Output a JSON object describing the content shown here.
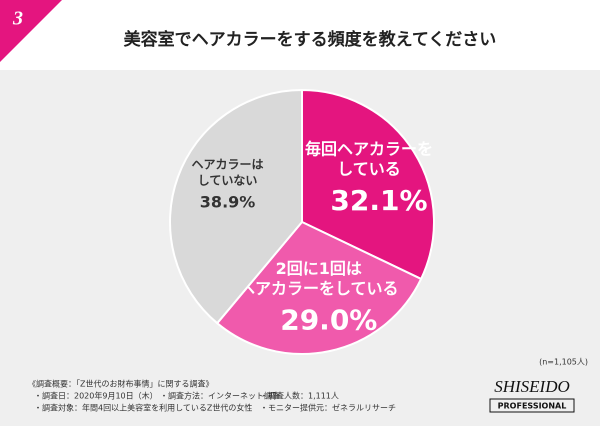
{
  "badge": "3",
  "chart_data": {
    "type": "pie",
    "title": "美容室でヘアカラーをする頻度を教えてください",
    "categories": [
      [
        "毎回ヘアカラーを",
        "している"
      ],
      [
        "2回に1回は",
        "ヘアカラーをしている"
      ],
      [
        "ヘアカラーは",
        "していない"
      ]
    ],
    "values": [
      32.1,
      29.0,
      38.9
    ],
    "value_labels": [
      "32.1%",
      "29.0%",
      "38.9%"
    ],
    "colors": [
      "#e4157f",
      "#f05aac",
      "#d9d9d9"
    ],
    "note": "(n=1,105人)"
  },
  "footer": {
    "heading": "《調査概要：「Z世代のお財布事情」に関する調査》",
    "items": [
      "・調査日：2020年9月10日（木）",
      "・調査方法：インターネット調査",
      "・調査人数：1,111人",
      "・調査対象：年間4回以上美容室を利用しているZ世代の女性",
      "・モニター提供元：ゼネラルリサーチ"
    ]
  },
  "logo": {
    "brand": "SHISEIDO",
    "sub": "PROFESSIONAL"
  }
}
